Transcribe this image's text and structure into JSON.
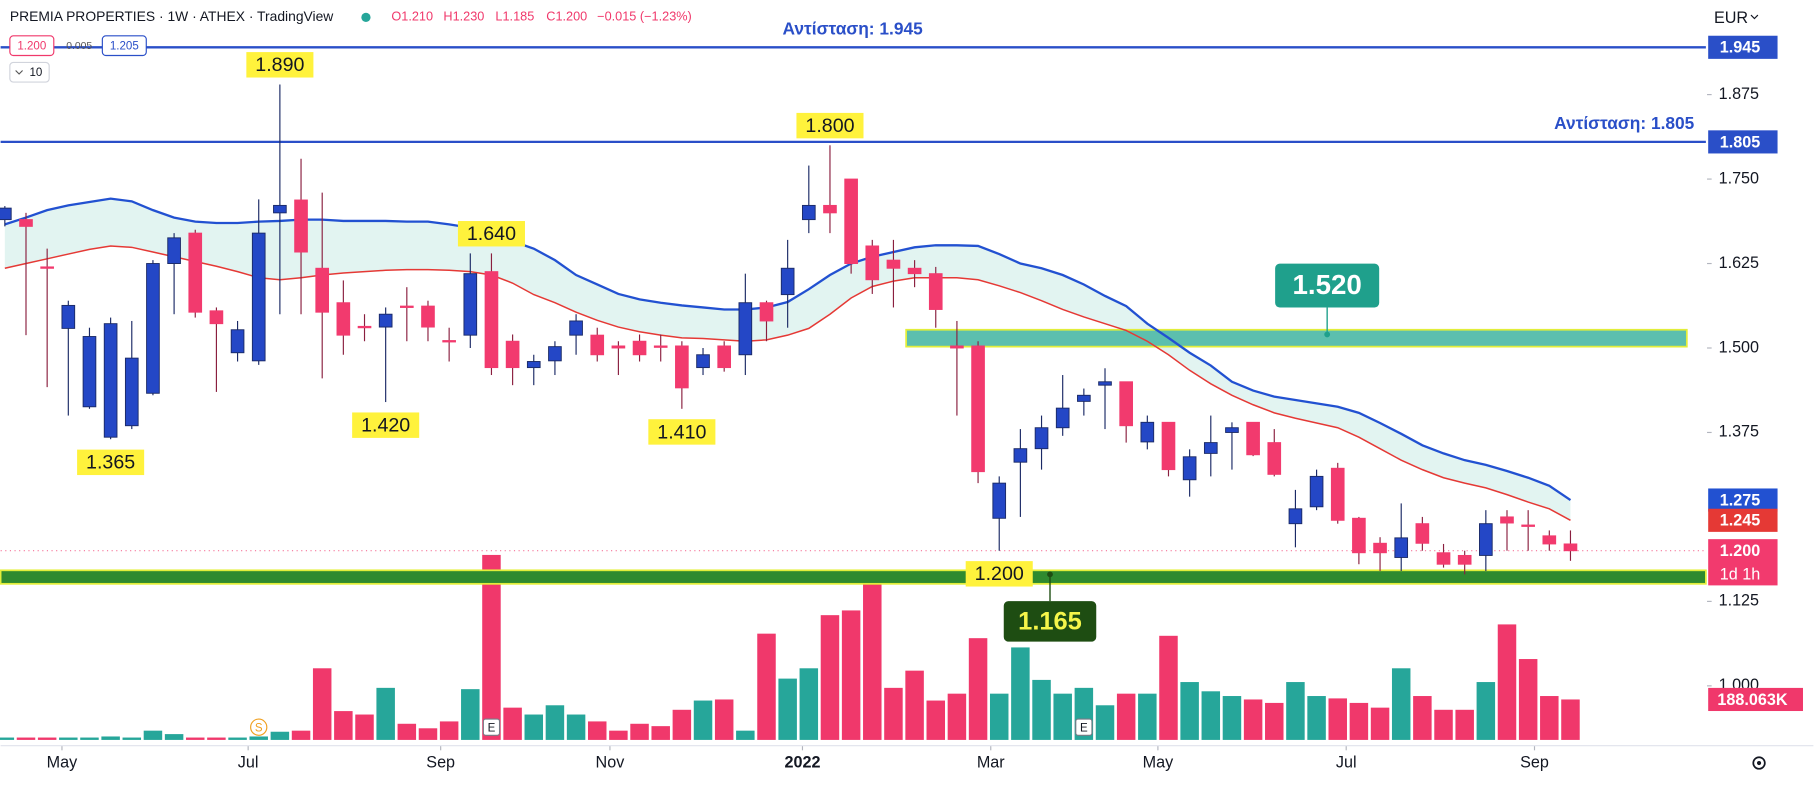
{
  "chart_data": {
    "type": "candlestick",
    "title": "PREMIA PROPERTIES · 1W · ATHEX · TradingView",
    "header": {
      "open": "O1.210",
      "high": "H1.230",
      "low": "L1.185",
      "close": "C1.200",
      "change": "−0.015 (−1.23%)",
      "bid": "1.200",
      "spread": "0.005",
      "ask": "1.205",
      "count": "10"
    },
    "currency": "EUR",
    "up_color": "#2447c6",
    "down_color": "#f23a6e",
    "volume_up_color": "#26a69a",
    "volume_down_color": "#f0386b",
    "xlim": [
      -0.2,
      80.4
    ],
    "ylim": [
      0.92,
      2.015
    ],
    "yticks": [
      1.875,
      {
        "value": 1.75,
        "label": "1.750"
      },
      1.625,
      {
        "value": 1.5,
        "label": "1.500"
      },
      1.375,
      1.125,
      {
        "value": 1,
        "label": "1.000"
      }
    ],
    "xticks": [
      {
        "value": 2.7,
        "label": "May"
      },
      {
        "value": 11.5,
        "label": "Jul"
      },
      {
        "value": 20.6,
        "label": "Sep"
      },
      {
        "value": 28.6,
        "label": "Nov"
      },
      {
        "value": 37.7,
        "label": "2022"
      },
      {
        "value": 46.6,
        "label": "Mar"
      },
      {
        "value": 54.5,
        "label": "May"
      },
      {
        "value": 63.4,
        "label": "Jul"
      },
      {
        "value": 72.3,
        "label": "Sep"
      }
    ],
    "open": [
      1.69,
      1.69,
      1.62,
      1.529,
      1.413,
      1.368,
      1.385,
      1.433,
      1.625,
      1.67,
      1.555,
      1.493,
      1.481,
      1.7,
      1.719,
      1.618,
      1.567,
      1.532,
      1.531,
      1.562,
      1.562,
      1.511,
      1.519,
      1.613,
      1.51,
      1.471,
      1.481,
      1.519,
      1.519,
      1.503,
      1.51,
      1.503,
      1.503,
      1.471,
      1.503,
      1.49,
      1.567,
      1.579,
      1.69,
      1.711,
      1.75,
      1.651,
      1.63,
      1.618,
      1.61,
      1.503,
      1.503,
      1.248,
      1.331,
      1.351,
      1.382,
      1.421,
      1.445,
      1.45,
      1.361,
      1.39,
      1.305,
      1.344,
      1.375,
      1.39,
      1.36,
      1.24,
      1.265,
      1.322,
      1.248,
      1.211,
      1.19,
      1.24,
      1.197,
      1.193,
      1.193,
      1.25,
      1.238,
      1.222,
      1.21
    ],
    "high": [
      1.71,
      1.7,
      1.647,
      1.57,
      1.53,
      1.545,
      1.54,
      1.63,
      1.67,
      1.675,
      1.56,
      1.54,
      1.72,
      1.89,
      1.78,
      1.73,
      1.6,
      1.55,
      1.56,
      1.59,
      1.57,
      1.53,
      1.64,
      1.64,
      1.52,
      1.49,
      1.51,
      1.55,
      1.53,
      1.51,
      1.52,
      1.52,
      1.51,
      1.5,
      1.51,
      1.61,
      1.57,
      1.66,
      1.77,
      1.8,
      1.75,
      1.66,
      1.66,
      1.63,
      1.62,
      1.54,
      1.51,
      1.31,
      1.38,
      1.4,
      1.46,
      1.44,
      1.47,
      1.45,
      1.4,
      1.39,
      1.35,
      1.4,
      1.39,
      1.39,
      1.38,
      1.29,
      1.32,
      1.33,
      1.25,
      1.22,
      1.27,
      1.25,
      1.21,
      1.2,
      1.26,
      1.26,
      1.26,
      1.23,
      1.23
    ],
    "low": [
      1.68,
      1.519,
      1.442,
      1.4,
      1.41,
      1.365,
      1.38,
      1.43,
      1.55,
      1.545,
      1.435,
      1.48,
      1.475,
      1.55,
      1.55,
      1.455,
      1.49,
      1.51,
      1.42,
      1.51,
      1.51,
      1.48,
      1.5,
      1.46,
      1.445,
      1.445,
      1.46,
      1.49,
      1.48,
      1.46,
      1.48,
      1.48,
      1.41,
      1.46,
      1.465,
      1.46,
      1.51,
      1.53,
      1.67,
      1.67,
      1.61,
      1.58,
      1.56,
      1.59,
      1.53,
      1.4,
      1.3,
      1.2,
      1.25,
      1.32,
      1.37,
      1.4,
      1.38,
      1.36,
      1.35,
      1.31,
      1.28,
      1.31,
      1.32,
      1.34,
      1.31,
      1.205,
      1.26,
      1.24,
      1.18,
      1.17,
      1.17,
      1.2,
      1.175,
      1.165,
      1.17,
      1.2,
      1.2,
      1.2,
      1.185
    ],
    "close": [
      1.707,
      1.68,
      1.618,
      1.563,
      1.517,
      1.536,
      1.485,
      1.625,
      1.663,
      1.553,
      1.536,
      1.527,
      1.67,
      1.711,
      1.642,
      1.553,
      1.519,
      1.53,
      1.55,
      1.56,
      1.531,
      1.51,
      1.61,
      1.471,
      1.471,
      1.48,
      1.502,
      1.54,
      1.49,
      1.5,
      1.49,
      1.501,
      1.441,
      1.49,
      1.471,
      1.567,
      1.54,
      1.618,
      1.711,
      1.7,
      1.625,
      1.601,
      1.618,
      1.61,
      1.557,
      1.5,
      1.317,
      1.3,
      1.351,
      1.382,
      1.411,
      1.43,
      1.45,
      1.385,
      1.39,
      1.32,
      1.339,
      1.36,
      1.382,
      1.342,
      1.313,
      1.262,
      1.31,
      1.245,
      1.197,
      1.197,
      1.219,
      1.211,
      1.18,
      1.18,
      1.24,
      1.241,
      1.236,
      1.21,
      1.2
    ],
    "volume": [
      11000,
      11000,
      11000,
      11000,
      11000,
      16000,
      11000,
      43000,
      27000,
      11000,
      11000,
      11000,
      16000,
      38000,
      43000,
      333000,
      134000,
      118000,
      242000,
      75000,
      54000,
      86000,
      236000,
      860000,
      150000,
      118000,
      161000,
      118000,
      86000,
      43000,
      75000,
      64000,
      140000,
      183000,
      188000,
      43000,
      494000,
      285000,
      333000,
      580000,
      602000,
      779000,
      242000,
      322000,
      183000,
      215000,
      473000,
      215000,
      430000,
      279000,
      215000,
      242000,
      161000,
      215000,
      215000,
      484000,
      269000,
      226000,
      204000,
      188000,
      172000,
      269000,
      204000,
      193000,
      172000,
      150000,
      333000,
      204000,
      140000,
      140000,
      269000,
      537000,
      376000,
      204000,
      188063
    ],
    "volume_last_label": "188.063K",
    "last_price_label": "1.200",
    "countdown": "1d 1h",
    "series": [
      {
        "color": "#2251d1",
        "values": [
          1.683,
          1.693,
          1.704,
          1.711,
          1.716,
          1.721,
          1.717,
          1.704,
          1.693,
          1.687,
          1.685,
          1.685,
          1.687,
          1.688,
          1.69,
          1.69,
          1.688,
          1.688,
          1.688,
          1.687,
          1.687,
          1.683,
          1.678,
          1.668,
          1.658,
          1.647,
          1.63,
          1.608,
          1.594,
          1.58,
          1.572,
          1.567,
          1.563,
          1.56,
          1.557,
          1.557,
          1.56,
          1.568,
          1.587,
          1.608,
          1.625,
          1.635,
          1.642,
          1.649,
          1.652,
          1.652,
          1.651,
          1.639,
          1.625,
          1.618,
          1.608,
          1.594,
          1.577,
          1.562,
          1.536,
          1.515,
          1.493,
          1.474,
          1.45,
          1.437,
          1.428,
          1.423,
          1.418,
          1.413,
          1.404,
          1.389,
          1.373,
          1.356,
          1.344,
          1.334,
          1.327,
          1.318,
          1.308,
          1.296,
          1.275
        ]
      },
      {
        "color": "#e53935",
        "values": [
          1.618,
          1.625,
          1.632,
          1.639,
          1.646,
          1.651,
          1.649,
          1.642,
          1.635,
          1.628,
          1.621,
          1.613,
          1.604,
          1.601,
          1.604,
          1.608,
          1.611,
          1.613,
          1.615,
          1.616,
          1.616,
          1.615,
          1.613,
          1.608,
          1.596,
          1.579,
          1.567,
          1.553,
          1.541,
          1.531,
          1.524,
          1.519,
          1.515,
          1.514,
          1.512,
          1.51,
          1.512,
          1.519,
          1.529,
          1.55,
          1.574,
          1.591,
          1.599,
          1.604,
          1.604,
          1.604,
          1.601,
          1.592,
          1.582,
          1.57,
          1.557,
          1.546,
          1.536,
          1.526,
          1.51,
          1.49,
          1.467,
          1.447,
          1.43,
          1.416,
          1.404,
          1.396,
          1.389,
          1.382,
          1.368,
          1.351,
          1.334,
          1.32,
          1.308,
          1.3,
          1.293,
          1.283,
          1.272,
          1.262,
          1.245
        ]
      }
    ],
    "band_color": "#dff3ef",
    "resistance": [
      {
        "value": 1.945,
        "tag": "1.945",
        "text": "Αντίσταση: 1.945"
      },
      {
        "value": 1.805,
        "tag": "1.805",
        "text": "Αντίσταση: 1.805"
      }
    ],
    "line_color": "#2a4fc8",
    "zones": [
      {
        "from": 1.502,
        "to": 1.527,
        "value": 1.52,
        "label": "1.520",
        "color": "#5cbfae",
        "label_color": "#1fa08c",
        "text_color": "#ffffff"
      },
      {
        "from": 1.151,
        "to": 1.171,
        "value": 1.165,
        "label": "1.165",
        "color": "#2f8a2f",
        "label_color": "#1e4d12",
        "text_color": "#f5f54a"
      }
    ],
    "point_labels": [
      {
        "index": 13,
        "value": 1.89,
        "label": "1.890",
        "anchor": "high"
      },
      {
        "index": 39,
        "value": 1.8,
        "label": "1.800",
        "anchor": "high"
      },
      {
        "index": 23,
        "value": 1.64,
        "label": "1.640",
        "anchor": "high"
      },
      {
        "index": 18,
        "value": 1.42,
        "label": "1.420",
        "anchor": "low"
      },
      {
        "index": 32,
        "value": 1.41,
        "label": "1.410",
        "anchor": "low"
      },
      {
        "index": 5,
        "value": 1.365,
        "label": "1.365",
        "anchor": "low"
      },
      {
        "index": 47,
        "value": 1.2,
        "label": "1.200",
        "anchor": "low"
      }
    ],
    "events": [
      {
        "index": 12,
        "label": "S"
      },
      {
        "index": 23,
        "label": "E"
      },
      {
        "index": 51,
        "label": "E"
      }
    ]
  }
}
